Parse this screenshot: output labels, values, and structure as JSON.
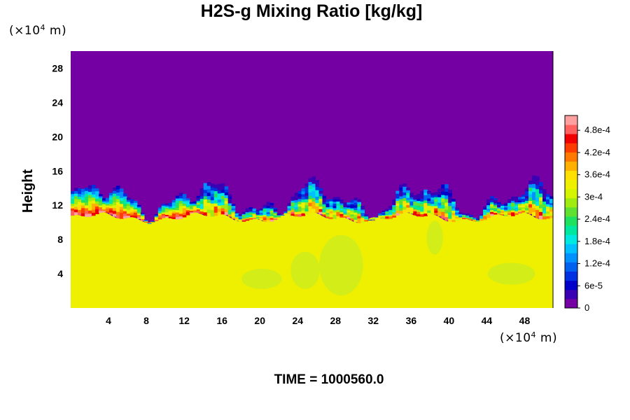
{
  "chart_data": {
    "type": "heatmap",
    "title": "H2S-g Mixing Ratio [kg/kg]",
    "ylabel": "Height",
    "y_unit": {
      "prefix": "(×10",
      "exp": "4",
      "suffix": " m)"
    },
    "x_unit": {
      "prefix": "(×10",
      "exp": "4",
      "suffix": " m)"
    },
    "xlim": [
      0,
      51
    ],
    "ylim": [
      0,
      30
    ],
    "x_ticks": [
      "4",
      "8",
      "12",
      "16",
      "20",
      "24",
      "28",
      "32",
      "36",
      "40",
      "44",
      "48"
    ],
    "y_ticks": [
      "4",
      "8",
      "12",
      "16",
      "20",
      "24",
      "28"
    ],
    "colorbar": {
      "min": 0,
      "max": 0.00052,
      "tick_labels": [
        "0",
        "6e-5",
        "1.2e-4",
        "1.8e-4",
        "2.4e-4",
        "3e-4",
        "3.6e-4",
        "4.2e-4",
        "4.8e-4"
      ],
      "colors": [
        "#7400a4",
        "#3a00b4",
        "#0000c8",
        "#0030e0",
        "#0060f0",
        "#0090ff",
        "#00c0ff",
        "#00e8e0",
        "#00e8a0",
        "#20e060",
        "#60e030",
        "#a0ec10",
        "#d4f400",
        "#eef000",
        "#ffe000",
        "#ffb000",
        "#ff7800",
        "#ff3c00",
        "#f00000",
        "#ff6060",
        "#ffa0a0"
      ]
    },
    "field_description_levels": {
      "upper_region_value": 0,
      "lower_region_value": 0.00034,
      "transition_height_range": [
        10.5,
        15.5
      ]
    },
    "time_label": "TIME = 1000560.0"
  }
}
